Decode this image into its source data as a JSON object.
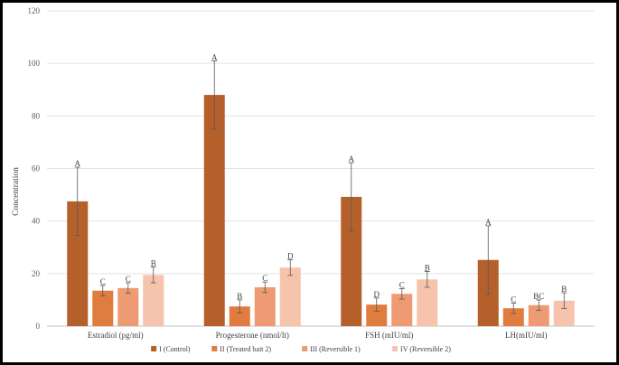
{
  "chart_data": {
    "type": "bar",
    "ylabel": "Concentration",
    "xlabel": "",
    "ylim": [
      0,
      120
    ],
    "yticks": [
      0,
      20,
      40,
      60,
      80,
      100,
      120
    ],
    "grid": true,
    "legend_position": "bottom",
    "categories": [
      "Estradiol (pg/ml)",
      "Progesterone (nmol/lt)",
      "FSH (mIU/ml)",
      "LH(mIU/ml)"
    ],
    "series": [
      {
        "name": "I (Control)",
        "color": "#B5602A",
        "values": [
          47.5,
          88,
          49.2,
          25.2
        ],
        "errors": [
          13,
          13,
          13,
          13
        ],
        "labels": [
          "A",
          "A",
          "A",
          "A"
        ]
      },
      {
        "name": "II (Treated bait 2)",
        "color": "#E07C3E",
        "values": [
          13.5,
          7.5,
          8.2,
          6.8
        ],
        "errors": [
          2,
          2.5,
          2.5,
          2
        ],
        "labels": [
          "C",
          "B",
          "D",
          "C"
        ]
      },
      {
        "name": "III (Reversible  1)",
        "color": "#EE9A72",
        "values": [
          14.5,
          14.8,
          12.3,
          8
        ],
        "errors": [
          2,
          2,
          2,
          2
        ],
        "labels": [
          "C",
          "C",
          "C",
          "BC"
        ]
      },
      {
        "name": "IV (Reversible  2)",
        "color": "#F6C4AC",
        "values": [
          19.5,
          22.3,
          17.8,
          9.7
        ],
        "errors": [
          3,
          3,
          3,
          3
        ],
        "labels": [
          "B",
          "D",
          "B",
          "B"
        ]
      }
    ]
  }
}
